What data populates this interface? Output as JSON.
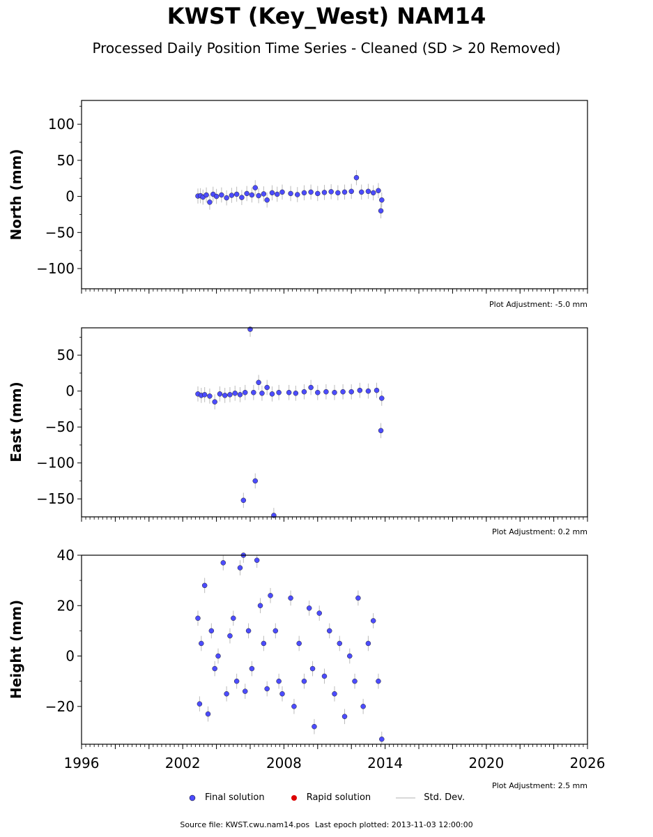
{
  "header": {
    "title": "KWST (Key_West) NAM14",
    "subtitle": "Processed Daily Position Time Series - Cleaned (SD > 20 Removed)"
  },
  "legend": [
    {
      "label": "Final solution",
      "color": "#4c4cff",
      "kind": "dot"
    },
    {
      "label": "Rapid solution",
      "color": "#dd0000",
      "kind": "dot"
    },
    {
      "label": "Std. Dev.",
      "color": "#cccccc",
      "kind": "line"
    }
  ],
  "footer": {
    "source": "Source file: KWST.cwu.nam14.pos",
    "last_epoch": "Last epoch plotted: 2013-11-03 12:00:00"
  },
  "chart_data": [
    {
      "type": "scatter",
      "panel": "north",
      "ylabel": "North (mm)",
      "adjustment": "Plot Adjustment: -5.0 mm",
      "xlim": [
        1996,
        2026
      ],
      "ylim": [
        -128,
        133
      ],
      "yticks": [
        -100,
        -50,
        0,
        50,
        100
      ],
      "grid": false,
      "series": [
        {
          "values": [
            [
              2002.9,
              0.5
            ],
            [
              2003.05,
              1.0
            ],
            [
              2003.2,
              -1.0
            ],
            [
              2003.4,
              2.0
            ],
            [
              2003.6,
              -8.0
            ],
            [
              2003.8,
              3.0
            ],
            [
              2004.0,
              0.0
            ],
            [
              2004.3,
              2.0
            ],
            [
              2004.6,
              -2.0
            ],
            [
              2004.9,
              1.5
            ],
            [
              2005.2,
              3.0
            ],
            [
              2005.5,
              -1.5
            ],
            [
              2005.8,
              4.0
            ],
            [
              2006.1,
              2.0
            ],
            [
              2006.3,
              12.0
            ],
            [
              2006.5,
              1.0
            ],
            [
              2006.8,
              3.5
            ],
            [
              2007.0,
              -5.0
            ],
            [
              2007.3,
              5.0
            ],
            [
              2007.6,
              3.0
            ],
            [
              2007.9,
              6.0
            ],
            [
              2008.4,
              4.0
            ],
            [
              2008.8,
              2.5
            ],
            [
              2009.2,
              5.0
            ],
            [
              2009.6,
              6.0
            ],
            [
              2010.0,
              4.0
            ],
            [
              2010.4,
              5.5
            ],
            [
              2010.8,
              6.5
            ],
            [
              2011.2,
              5.0
            ],
            [
              2011.6,
              6.0
            ],
            [
              2012.0,
              7.0
            ],
            [
              2012.3,
              26.0
            ],
            [
              2012.6,
              6.0
            ],
            [
              2013.0,
              7.0
            ],
            [
              2013.3,
              5.0
            ],
            [
              2013.6,
              8.0
            ],
            [
              2013.8,
              -5.0
            ],
            [
              2013.75,
              -20.0
            ]
          ]
        }
      ]
    },
    {
      "type": "scatter",
      "panel": "east",
      "ylabel": "East (mm)",
      "adjustment": "Plot Adjustment: 0.2 mm",
      "xlim": [
        1996,
        2026
      ],
      "ylim": [
        -175,
        88
      ],
      "yticks": [
        -150,
        -100,
        -50,
        0,
        50
      ],
      "grid": false,
      "series": [
        {
          "values": [
            [
              2002.9,
              -4.0
            ],
            [
              2003.1,
              -6.0
            ],
            [
              2003.3,
              -5.0
            ],
            [
              2003.6,
              -7.0
            ],
            [
              2003.9,
              -15.0
            ],
            [
              2004.2,
              -4.0
            ],
            [
              2004.5,
              -6.0
            ],
            [
              2004.8,
              -5.0
            ],
            [
              2005.1,
              -3.0
            ],
            [
              2005.4,
              -5.0
            ],
            [
              2005.7,
              -2.0
            ],
            [
              2005.6,
              -152.0
            ],
            [
              2006.0,
              86.0
            ],
            [
              2006.2,
              -2.0
            ],
            [
              2006.3,
              -125.0
            ],
            [
              2006.5,
              12.0
            ],
            [
              2006.7,
              -3.0
            ],
            [
              2007.0,
              5.0
            ],
            [
              2007.3,
              -4.0
            ],
            [
              2007.4,
              -173.0
            ],
            [
              2007.7,
              -2.0
            ],
            [
              2008.3,
              -2.0
            ],
            [
              2008.7,
              -3.0
            ],
            [
              2009.2,
              -1.0
            ],
            [
              2009.6,
              5.0
            ],
            [
              2010.0,
              -2.0
            ],
            [
              2010.5,
              -1.0
            ],
            [
              2011.0,
              -2.0
            ],
            [
              2011.5,
              -1.0
            ],
            [
              2012.0,
              -1.0
            ],
            [
              2012.5,
              1.0
            ],
            [
              2013.0,
              0.0
            ],
            [
              2013.5,
              1.0
            ],
            [
              2013.8,
              -10.0
            ],
            [
              2013.75,
              -55.0
            ]
          ]
        }
      ]
    },
    {
      "type": "scatter",
      "panel": "height",
      "ylabel": "Height (mm)",
      "adjustment": "Plot Adjustment: 2.5 mm",
      "xlim": [
        1996,
        2026
      ],
      "ylim": [
        -35,
        40
      ],
      "yticks": [
        -20,
        0,
        20,
        40
      ],
      "xticks": [
        1996,
        2002,
        2008,
        2014,
        2020,
        2026
      ],
      "grid": false,
      "series": [
        {
          "values": [
            [
              2002.9,
              15.0
            ],
            [
              2003.0,
              -19.0
            ],
            [
              2003.1,
              5.0
            ],
            [
              2003.3,
              28.0
            ],
            [
              2003.5,
              -23.0
            ],
            [
              2003.7,
              10.0
            ],
            [
              2003.9,
              -5.0
            ],
            [
              2004.1,
              0.0
            ],
            [
              2004.4,
              37.0
            ],
            [
              2004.6,
              -15.0
            ],
            [
              2004.8,
              8.0
            ],
            [
              2005.0,
              15.0
            ],
            [
              2005.2,
              -10.0
            ],
            [
              2005.4,
              35.0
            ],
            [
              2005.6,
              40.0
            ],
            [
              2005.7,
              -14.0
            ],
            [
              2005.9,
              10.0
            ],
            [
              2006.1,
              -5.0
            ],
            [
              2006.4,
              38.0
            ],
            [
              2006.6,
              20.0
            ],
            [
              2006.8,
              5.0
            ],
            [
              2007.0,
              -13.0
            ],
            [
              2007.2,
              24.0
            ],
            [
              2007.5,
              10.0
            ],
            [
              2007.7,
              -10.0
            ],
            [
              2007.9,
              -15.0
            ],
            [
              2008.4,
              23.0
            ],
            [
              2008.6,
              -20.0
            ],
            [
              2008.9,
              5.0
            ],
            [
              2009.2,
              -10.0
            ],
            [
              2009.5,
              19.0
            ],
            [
              2009.7,
              -5.0
            ],
            [
              2009.8,
              -28.0
            ],
            [
              2010.1,
              17.0
            ],
            [
              2010.4,
              -8.0
            ],
            [
              2010.7,
              10.0
            ],
            [
              2011.0,
              -15.0
            ],
            [
              2011.3,
              5.0
            ],
            [
              2011.6,
              -24.0
            ],
            [
              2011.9,
              0.0
            ],
            [
              2012.2,
              -10.0
            ],
            [
              2012.4,
              23.0
            ],
            [
              2012.7,
              -20.0
            ],
            [
              2013.0,
              5.0
            ],
            [
              2013.3,
              14.0
            ],
            [
              2013.6,
              -10.0
            ],
            [
              2013.8,
              -33.0
            ]
          ]
        }
      ]
    }
  ]
}
